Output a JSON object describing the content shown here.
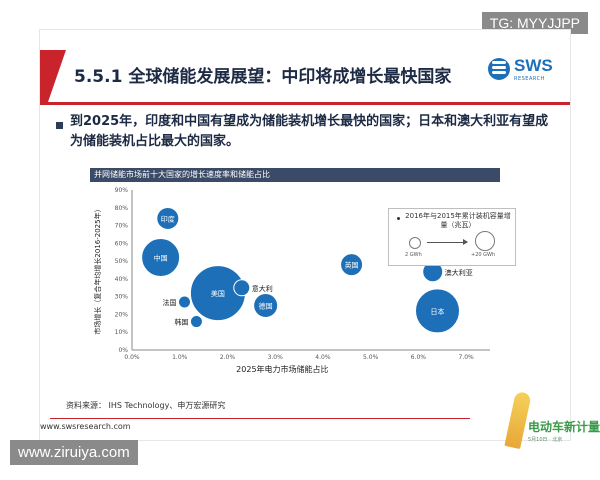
{
  "watermark_top": "TG: MYYJJPP",
  "watermark_bottom": "www.ziruiya.com",
  "slide": {
    "title": "5.5.1 全球储能发展展望：中印将成增长最快国家",
    "logo_name": "SWS",
    "logo_sub": "RESEARCH",
    "bullet": "到2025年，印度和中国有望成为储能装机增长最快的国家；日本和澳大利亚有望成为储能装机占比最大的国家。",
    "source": "资料来源： IHS Technology、申万宏源研究",
    "url": "www.swsresearch.com",
    "brand_name": "电动车新计量",
    "brand_sub": "5月10日 · 北京"
  },
  "colors": {
    "accent_red": "#c9232c",
    "bubble_blue": "#1d6fb8",
    "header_navy": "#3b4a66",
    "title_navy": "#1d2a44"
  },
  "chart_data": {
    "type": "scatter",
    "title": "并网储能市场前十大国家的增长速度率和储能占比",
    "xlabel": "2025年电力市场储能占比",
    "ylabel": "市场增长（复合年均增长2016-2025年）",
    "xlim": [
      0,
      7.5
    ],
    "ylim": [
      0,
      90
    ],
    "x_ticks": [
      "0.0%",
      "1.0%",
      "2.0%",
      "3.0%",
      "4.0%",
      "5.0%",
      "6.0%",
      "7.0%"
    ],
    "y_ticks": [
      "0%",
      "10%",
      "20%",
      "30%",
      "40%",
      "50%",
      "60%",
      "70%",
      "80%",
      "90%"
    ],
    "points": [
      {
        "name": "印度",
        "x": 0.75,
        "y": 74,
        "size": 22,
        "label_pos": "inside"
      },
      {
        "name": "中国",
        "x": 0.6,
        "y": 52,
        "size": 38,
        "label_pos": "inside"
      },
      {
        "name": "美国",
        "x": 1.8,
        "y": 32,
        "size": 55,
        "label_pos": "inside"
      },
      {
        "name": "意大利",
        "x": 2.3,
        "y": 35,
        "size": 16,
        "label_pos": "right"
      },
      {
        "name": "法国",
        "x": 1.1,
        "y": 27,
        "size": 12,
        "label_pos": "left"
      },
      {
        "name": "韩国",
        "x": 1.35,
        "y": 16,
        "size": 12,
        "label_pos": "left"
      },
      {
        "name": "德国",
        "x": 2.8,
        "y": 25,
        "size": 24,
        "label_pos": "inside"
      },
      {
        "name": "英国",
        "x": 4.6,
        "y": 48,
        "size": 22,
        "label_pos": "inside"
      },
      {
        "name": "澳大利亚",
        "x": 6.3,
        "y": 44,
        "size": 20,
        "label_pos": "right"
      },
      {
        "name": "日本",
        "x": 6.4,
        "y": 22,
        "size": 44,
        "label_pos": "inside"
      }
    ],
    "legend": {
      "title": "2016年与2015年累计装机容量增量（兆瓦）",
      "small_label": "2 GWh",
      "big_label": "+20 GWh",
      "placement": "top-right"
    },
    "grid": false
  }
}
